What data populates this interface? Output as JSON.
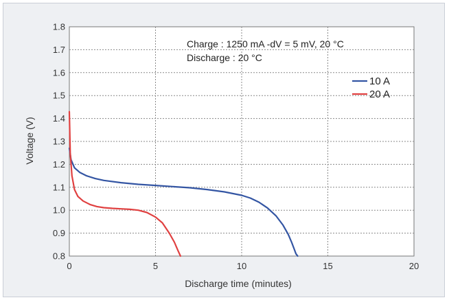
{
  "chart_data": {
    "type": "line",
    "xlabel": "Discharge time (minutes)",
    "ylabel": "Voltage (V)",
    "xlim": [
      0,
      20
    ],
    "ylim": [
      0.8,
      1.8
    ],
    "xticks": [
      "0",
      "5",
      "10",
      "15",
      "20"
    ],
    "yticks": [
      "0.8",
      "0.9",
      "1.0",
      "1.1",
      "1.2",
      "1.3",
      "1.4",
      "1.5",
      "1.6",
      "1.7",
      "1.8"
    ],
    "grid": true,
    "legend_position": "top-right",
    "annotations": [
      "Charge : 1250 mA -dV = 5 mV, 20 °C",
      "Discharge : 20 °C"
    ],
    "series": [
      {
        "name": "10 A",
        "color": "#3355a3",
        "x": [
          0,
          0.1,
          0.3,
          0.6,
          1,
          1.5,
          2,
          3,
          4,
          5,
          6,
          7,
          8,
          9,
          10,
          10.5,
          11,
          11.5,
          12,
          12.4,
          12.7,
          12.9,
          13.05,
          13.15,
          13.25
        ],
        "y": [
          1.27,
          1.22,
          1.185,
          1.165,
          1.15,
          1.138,
          1.13,
          1.12,
          1.113,
          1.108,
          1.103,
          1.098,
          1.09,
          1.08,
          1.065,
          1.053,
          1.035,
          1.01,
          0.975,
          0.935,
          0.895,
          0.86,
          0.83,
          0.81,
          0.8
        ]
      },
      {
        "name": "20 A",
        "color": "#e04040",
        "x": [
          0,
          0.05,
          0.15,
          0.3,
          0.5,
          0.8,
          1.2,
          1.6,
          2,
          2.5,
          3,
          3.5,
          4,
          4.5,
          5,
          5.4,
          5.8,
          6.1,
          6.3,
          6.45
        ],
        "y": [
          1.43,
          1.25,
          1.15,
          1.09,
          1.06,
          1.04,
          1.025,
          1.016,
          1.011,
          1.008,
          1.006,
          1.004,
          1.0,
          0.99,
          0.97,
          0.945,
          0.9,
          0.86,
          0.825,
          0.8
        ]
      }
    ]
  }
}
